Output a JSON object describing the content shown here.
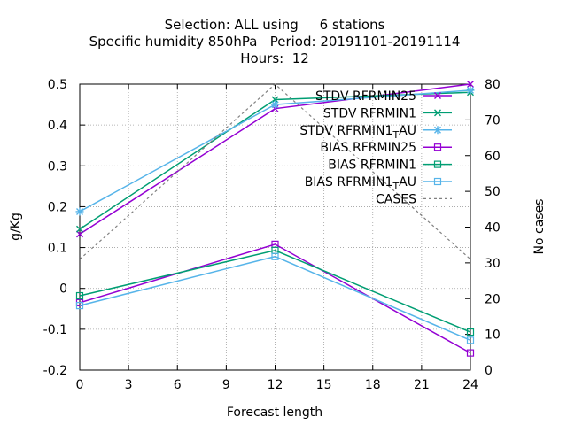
{
  "chart_data": {
    "type": "line",
    "title": [
      "Selection: ALL using     6 stations",
      "Specific humidity 850hPa   Period: 20191101-20191114",
      "Hours:  12"
    ],
    "xlabel": "Forecast length",
    "ylabel": "g/Kg",
    "y2label": "No cases",
    "x": [
      0,
      12,
      24
    ],
    "xticks": [
      0,
      3,
      6,
      9,
      12,
      15,
      18,
      21,
      24
    ],
    "xlim": [
      0,
      24
    ],
    "ylim": [
      -0.2,
      0.5
    ],
    "yticks": [
      -0.2,
      -0.1,
      0,
      0.1,
      0.2,
      0.3,
      0.4,
      0.5
    ],
    "ytick_labels": [
      "-0.2",
      "-0.1",
      "0",
      "0.1",
      "0.2",
      "0.3",
      "0.4",
      "0.5"
    ],
    "y2lim": [
      0,
      80
    ],
    "y2ticks": [
      0,
      10,
      20,
      30,
      40,
      50,
      60,
      70,
      80
    ],
    "grid": true,
    "legend_position": "top-right",
    "series": [
      {
        "name": "STDV RFRMIN25",
        "legend_main": "STDV RFRMIN25",
        "legend_sub": "",
        "legend_tail": "",
        "values": [
          0.133,
          0.44,
          0.5
        ],
        "color": "#9400d3",
        "marker": "x",
        "dash": false,
        "axis": "y1"
      },
      {
        "name": "STDV RFRMIN1",
        "legend_main": "STDV RFRMIN1",
        "legend_sub": "",
        "legend_tail": "",
        "values": [
          0.145,
          0.462,
          0.48
        ],
        "color": "#009e73",
        "marker": "x",
        "dash": false,
        "axis": "y1"
      },
      {
        "name": "STDV RFRMIN1_TAU",
        "legend_main": "STDV RFRMIN1",
        "legend_sub": "T",
        "legend_tail": "AU",
        "values": [
          0.188,
          0.45,
          0.485
        ],
        "color": "#56b4e9",
        "marker": "star",
        "dash": false,
        "axis": "y1"
      },
      {
        "name": "BIAS RFRMIN25",
        "legend_main": "BIAS RFRMIN25",
        "legend_sub": "",
        "legend_tail": "",
        "values": [
          -0.035,
          0.108,
          -0.158
        ],
        "color": "#9400d3",
        "marker": "square",
        "dash": false,
        "axis": "y1"
      },
      {
        "name": "BIAS RFRMIN1",
        "legend_main": "BIAS RFRMIN1",
        "legend_sub": "",
        "legend_tail": "",
        "values": [
          -0.018,
          0.093,
          -0.107
        ],
        "color": "#009e73",
        "marker": "square",
        "dash": false,
        "axis": "y1"
      },
      {
        "name": "BIAS RFRMIN1_TAU",
        "legend_main": "BIAS RFRMIN1",
        "legend_sub": "T",
        "legend_tail": "AU",
        "values": [
          -0.042,
          0.078,
          -0.127
        ],
        "color": "#56b4e9",
        "marker": "square",
        "dash": false,
        "axis": "y1"
      },
      {
        "name": "CASES",
        "legend_main": "CASES",
        "legend_sub": "",
        "legend_tail": "",
        "values": [
          31,
          80,
          31
        ],
        "color": "#808080",
        "marker": "none",
        "dash": true,
        "axis": "y2"
      }
    ]
  }
}
